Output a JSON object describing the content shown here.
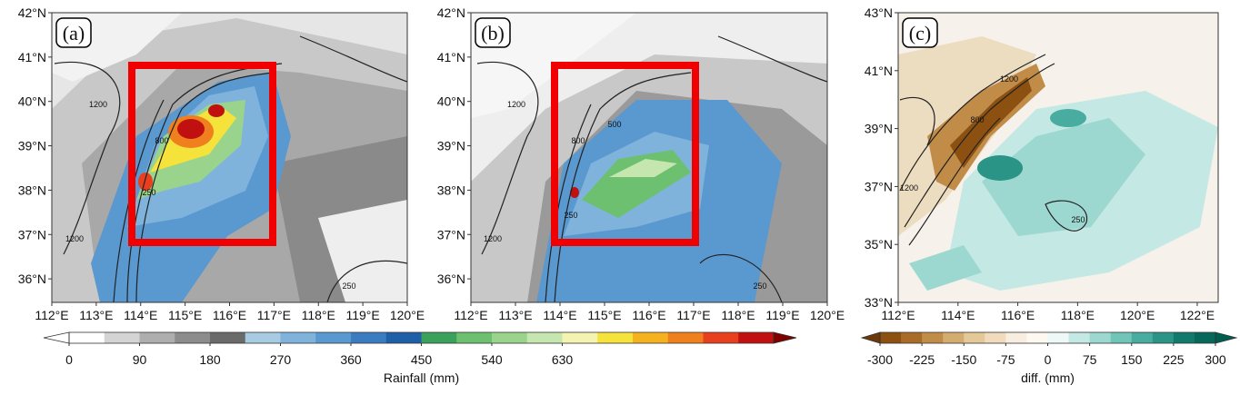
{
  "panels": [
    {
      "label": "(a)",
      "xlim": [
        112,
        120
      ],
      "ylim": [
        35.47,
        42
      ],
      "xticks": [
        {
          "value": 112,
          "label": "112°E"
        },
        {
          "value": 113,
          "label": "113°E"
        },
        {
          "value": 114,
          "label": "114°E"
        },
        {
          "value": 115,
          "label": "115°E"
        },
        {
          "value": 116,
          "label": "116°E"
        },
        {
          "value": 117,
          "label": "117°E"
        },
        {
          "value": 118,
          "label": "118°E"
        },
        {
          "value": 119,
          "label": "119°E"
        },
        {
          "value": 120,
          "label": "120°E"
        }
      ],
      "yticks": [
        {
          "value": 36,
          "label": "36°N"
        },
        {
          "value": 37,
          "label": "37°N"
        },
        {
          "value": 38,
          "label": "38°N"
        },
        {
          "value": 39,
          "label": "39°N"
        },
        {
          "value": 40,
          "label": "40°N"
        },
        {
          "value": 41,
          "label": "41°N"
        },
        {
          "value": 42,
          "label": "42°N"
        }
      ],
      "contour_labels": [
        "1200",
        "800",
        "250",
        "1200",
        "250"
      ]
    },
    {
      "label": "(b)",
      "xlim": [
        112,
        120
      ],
      "ylim": [
        35.47,
        42
      ],
      "xticks": [
        {
          "value": 112,
          "label": "112°E"
        },
        {
          "value": 113,
          "label": "113°E"
        },
        {
          "value": 114,
          "label": "114°E"
        },
        {
          "value": 115,
          "label": "115°E"
        },
        {
          "value": 116,
          "label": "116°E"
        },
        {
          "value": 117,
          "label": "117°E"
        },
        {
          "value": 118,
          "label": "118°E"
        },
        {
          "value": 119,
          "label": "119°E"
        },
        {
          "value": 120,
          "label": "120°E"
        }
      ],
      "yticks": [
        {
          "value": 36,
          "label": "36°N"
        },
        {
          "value": 37,
          "label": "37°N"
        },
        {
          "value": 38,
          "label": "38°N"
        },
        {
          "value": 39,
          "label": "39°N"
        },
        {
          "value": 40,
          "label": "40°N"
        },
        {
          "value": 41,
          "label": "41°N"
        },
        {
          "value": 42,
          "label": "42°N"
        }
      ],
      "contour_labels": [
        "1200",
        "800",
        "500",
        "250",
        "1200",
        "250"
      ]
    },
    {
      "label": "(c)",
      "xlim": [
        112,
        122.7
      ],
      "ylim": [
        33,
        43
      ],
      "xticks": [
        {
          "value": 112,
          "label": "112°E"
        },
        {
          "value": 114,
          "label": "114°E"
        },
        {
          "value": 116,
          "label": "116°E"
        },
        {
          "value": 118,
          "label": "118°E"
        },
        {
          "value": 120,
          "label": "120°E"
        },
        {
          "value": 122,
          "label": "122°E"
        }
      ],
      "yticks": [
        {
          "value": 33,
          "label": "33°N"
        },
        {
          "value": 35,
          "label": "35°N"
        },
        {
          "value": 37,
          "label": "37°N"
        },
        {
          "value": 39,
          "label": "39°N"
        },
        {
          "value": 41,
          "label": "41°N"
        },
        {
          "value": 43,
          "label": "43°N"
        }
      ],
      "contour_labels": [
        "1200",
        "800",
        "1200",
        "250"
      ]
    }
  ],
  "colorbars": [
    {
      "title": "Rainfall (mm)",
      "lim": [
        0,
        900
      ],
      "ticks": [
        0,
        90,
        180,
        270,
        360,
        450,
        540,
        630
      ],
      "colors": [
        "#ffffff",
        "#d4d4d4",
        "#aeaeae",
        "#8c8c8c",
        "#6a6a6a",
        "#a6cbe3",
        "#7fb3dc",
        "#5a98d0",
        "#3a7cbf",
        "#1f5fa8",
        "#3aa15a",
        "#6cc070",
        "#9ad48c",
        "#c6e6b0",
        "#f4f4b0",
        "#f5e23a",
        "#f5b21e",
        "#f0801e",
        "#e8401e",
        "#c01010"
      ],
      "under": "#ffffff",
      "over": "#800000"
    },
    {
      "title": "diff. (mm)",
      "lim": [
        -300,
        300
      ],
      "ticks": [
        -300,
        -225,
        -150,
        -75,
        0,
        75,
        150,
        225,
        300
      ],
      "colors": [
        "#8c5010",
        "#a86c28",
        "#c08c48",
        "#d4ac70",
        "#e4c898",
        "#f0dcbc",
        "#f8eee0",
        "#fdf8f0",
        "#eef8f6",
        "#c4e8e4",
        "#9cd8d0",
        "#70c4b8",
        "#48aca0",
        "#2a9486",
        "#127a6c",
        "#06685a"
      ],
      "under": "#6b3a0a",
      "over": "#005e50"
    }
  ]
}
